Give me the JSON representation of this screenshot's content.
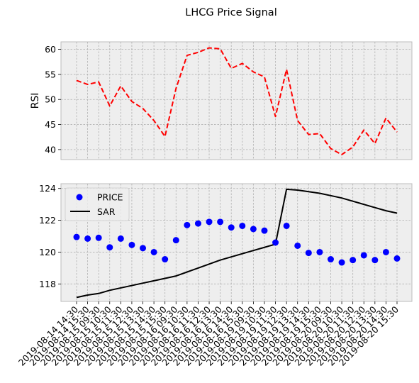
{
  "chart_data": {
    "title": "LHCG Price Signal",
    "x": [
      "2019-08-14 14:30",
      "2019-08-14 15:30",
      "2019-08-15 09:30",
      "2019-08-15 10:30",
      "2019-08-15 11:30",
      "2019-08-15 12:30",
      "2019-08-15 13:30",
      "2019-08-15 14:30",
      "2019-08-15 15:30",
      "2019-08-16 09:30",
      "2019-08-16 10:30",
      "2019-08-16 11:30",
      "2019-08-16 12:30",
      "2019-08-16 13:30",
      "2019-08-16 14:30",
      "2019-08-16 15:30",
      "2019-08-19 09:30",
      "2019-08-19 10:30",
      "2019-08-19 11:30",
      "2019-08-19 12:30",
      "2019-08-19 13:30",
      "2019-08-19 14:30",
      "2019-08-19 15:30",
      "2019-08-20 09:30",
      "2019-08-20 10:30",
      "2019-08-20 11:30",
      "2019-08-20 12:30",
      "2019-08-20 13:30",
      "2019-08-20 14:30",
      "2019-08-20 15:30"
    ],
    "panels": [
      {
        "type": "line",
        "ylabel": "RSI",
        "ylim": [
          38,
          61.5
        ],
        "yticks": [
          40,
          45,
          50,
          55,
          60
        ],
        "grid": true,
        "series": [
          {
            "color": "#ff0000",
            "style": "dashed",
            "values": [
              53.8,
              53.0,
              53.5,
              48.7,
              52.7,
              49.6,
              48.2,
              45.8,
              42.6,
              52.2,
              58.8,
              59.4,
              60.3,
              60.1,
              56.2,
              57.2,
              55.5,
              54.5,
              46.6,
              56.0,
              45.8,
              43.0,
              43.2,
              40.2,
              39.0,
              40.5,
              43.9,
              41.2,
              46.3,
              43.5
            ]
          }
        ]
      },
      {
        "type": "scatter+line",
        "ylim": [
          116.9,
          124.3
        ],
        "yticks": [
          118,
          120,
          122,
          124
        ],
        "grid": true,
        "legend": "top-left",
        "series": [
          {
            "name": "PRICE",
            "kind": "scatter",
            "color": "#0000ff",
            "values": [
              120.95,
              120.85,
              120.9,
              120.3,
              120.85,
              120.45,
              120.25,
              120.0,
              119.55,
              120.75,
              121.7,
              121.8,
              121.9,
              121.9,
              121.55,
              121.65,
              121.45,
              121.35,
              120.6,
              121.65,
              120.4,
              119.95,
              120.0,
              119.55,
              119.35,
              119.5,
              119.8,
              119.5,
              120.0,
              119.6
            ]
          },
          {
            "name": "SAR",
            "kind": "line",
            "color": "#000000",
            "values": [
              117.15,
              117.3,
              117.4,
              117.6,
              117.75,
              117.9,
              118.05,
              118.2,
              118.35,
              118.5,
              118.75,
              119.0,
              119.25,
              119.5,
              119.7,
              119.9,
              120.1,
              120.3,
              120.5,
              123.95,
              123.9,
              123.8,
              123.7,
              123.55,
              123.4,
              123.2,
              123.0,
              122.8,
              122.6,
              122.45
            ]
          }
        ]
      }
    ]
  }
}
